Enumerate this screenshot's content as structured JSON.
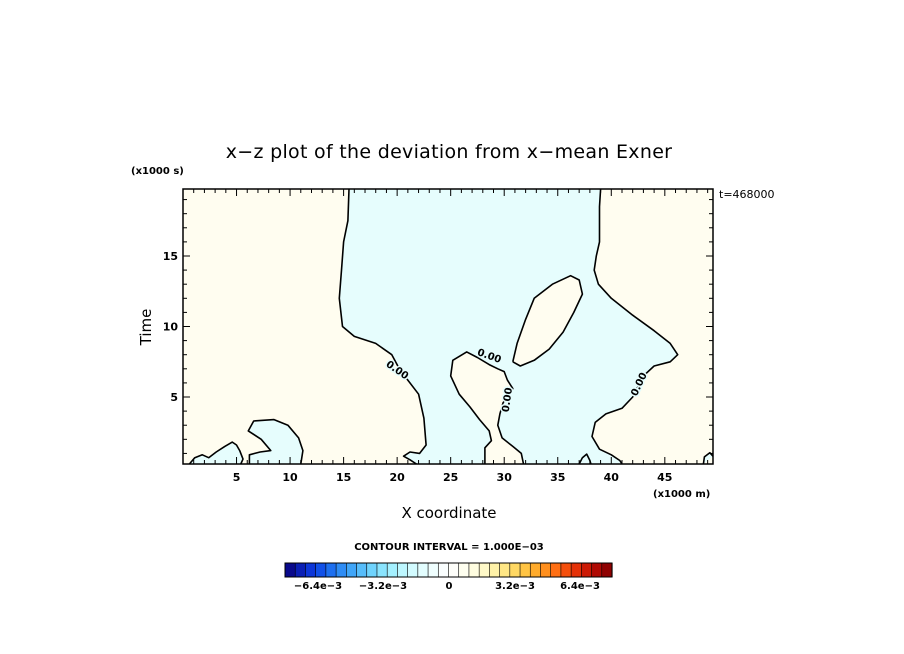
{
  "chart_data": {
    "type": "contour",
    "title": "x−z plot of the deviation from x−mean Exner",
    "xlabel": "X coordinate",
    "ylabel": "Time",
    "x_unit_label": "(x1000 m)",
    "y_unit_label": "(x1000 s)",
    "xlim": [
      0,
      49.5
    ],
    "ylim": [
      0.25,
      19.75
    ],
    "x_ticks": [
      5,
      10,
      15,
      20,
      25,
      30,
      35,
      40,
      45
    ],
    "y_ticks": [
      5,
      10,
      15
    ],
    "annotation": "t=468000",
    "contour_interval_label": "CONTOUR INTERVAL = 1.000E−03",
    "contour_level_label": "0.00",
    "colors": {
      "positive_fill": "#fffdf0",
      "negative_fill": "#e6fdfd",
      "contour": "#000000"
    },
    "zero_contours": [
      {
        "id": "central-region",
        "points": [
          [
            15.5,
            19.75
          ],
          [
            15.4,
            17.5
          ],
          [
            15,
            16
          ],
          [
            14.8,
            14
          ],
          [
            14.6,
            12
          ],
          [
            14.9,
            10
          ],
          [
            16,
            9.3
          ],
          [
            18,
            8.8
          ],
          [
            19.5,
            8
          ],
          [
            20.2,
            7
          ],
          [
            21,
            6.2
          ],
          [
            22,
            5.2
          ],
          [
            22.5,
            3.5
          ],
          [
            22.7,
            1.6
          ],
          [
            22.1,
            1.0
          ],
          [
            21.2,
            1.1
          ],
          [
            20.6,
            0.8
          ],
          [
            21.2,
            0.55
          ],
          [
            21.8,
            0.25
          ]
        ]
      },
      {
        "id": "central-region-right",
        "points": [
          [
            39.0,
            19.75
          ],
          [
            38.9,
            18.5
          ],
          [
            38.9,
            16
          ],
          [
            38.6,
            15
          ],
          [
            38.4,
            14
          ],
          [
            38.8,
            13
          ],
          [
            40,
            12
          ],
          [
            42,
            10.8
          ],
          [
            44,
            9.7
          ],
          [
            45.5,
            8.8
          ],
          [
            46.2,
            8
          ],
          [
            45.5,
            7.5
          ],
          [
            44,
            7.2
          ],
          [
            43,
            6.5
          ],
          [
            42,
            5
          ],
          [
            41,
            4.2
          ],
          [
            39.5,
            3.8
          ],
          [
            38.5,
            3.2
          ],
          [
            38.2,
            2.2
          ],
          [
            38.9,
            1.3
          ],
          [
            40,
            0.9
          ],
          [
            40.8,
            0.5
          ],
          [
            41.0,
            0.25
          ]
        ]
      },
      {
        "id": "inner-lobe",
        "points": [
          [
            28.2,
            0.25
          ],
          [
            28.2,
            1.4
          ],
          [
            28.8,
            1.9
          ],
          [
            28.6,
            2.6
          ],
          [
            27.7,
            3.4
          ],
          [
            26.8,
            4.3
          ],
          [
            25.8,
            5.2
          ],
          [
            25,
            6.5
          ],
          [
            25.2,
            7.6
          ],
          [
            26.5,
            8.2
          ],
          [
            27.5,
            7.8
          ],
          [
            28.6,
            7.3
          ],
          [
            29.4,
            7.0
          ],
          [
            30,
            6.8
          ],
          [
            30.3,
            6.2
          ],
          [
            30.8,
            5.6
          ],
          [
            30.4,
            5.1
          ],
          [
            29.9,
            4.6
          ],
          [
            29.6,
            3.8
          ],
          [
            29.4,
            3.0
          ],
          [
            29.8,
            2.1
          ],
          [
            30.8,
            1.5
          ],
          [
            31.6,
            1.0
          ],
          [
            31.8,
            0.25
          ]
        ]
      },
      {
        "id": "upper-lobe",
        "points": [
          [
            30.8,
            7.5
          ],
          [
            31.2,
            8.8
          ],
          [
            32,
            10.5
          ],
          [
            32.8,
            12
          ],
          [
            34.5,
            13
          ],
          [
            36.2,
            13.6
          ],
          [
            37,
            13.3
          ],
          [
            37.3,
            12.3
          ],
          [
            36.5,
            11
          ],
          [
            35.5,
            9.6
          ],
          [
            34.2,
            8.4
          ],
          [
            32.8,
            7.6
          ],
          [
            31.5,
            7.2
          ],
          [
            30.8,
            7.5
          ]
        ]
      },
      {
        "id": "left-bump",
        "points": [
          [
            6.2,
            0.25
          ],
          [
            6.2,
            0.9
          ],
          [
            7.2,
            1.1
          ],
          [
            8.2,
            1.2
          ],
          [
            7.3,
            2.0
          ],
          [
            6.1,
            2.6
          ],
          [
            6.6,
            3.3
          ],
          [
            8.5,
            3.4
          ],
          [
            9.8,
            3.0
          ],
          [
            10.8,
            2.1
          ],
          [
            11.2,
            1.2
          ],
          [
            11.0,
            0.25
          ]
        ]
      },
      {
        "id": "left-corner",
        "points": [
          [
            0.6,
            0.25
          ],
          [
            1.1,
            0.7
          ],
          [
            1.8,
            0.9
          ],
          [
            2.4,
            0.7
          ],
          [
            3.1,
            1.1
          ],
          [
            3.9,
            1.5
          ],
          [
            4.6,
            1.8
          ],
          [
            5.0,
            1.6
          ],
          [
            5.3,
            1.2
          ],
          [
            5.6,
            0.6
          ],
          [
            5.4,
            0.25
          ]
        ]
      },
      {
        "id": "mid-bottom",
        "points": [
          [
            37.0,
            0.25
          ],
          [
            37.3,
            0.7
          ],
          [
            37.7,
            0.95
          ],
          [
            38.0,
            0.5
          ],
          [
            38.1,
            0.25
          ]
        ]
      },
      {
        "id": "right-corner",
        "points": [
          [
            48.6,
            0.25
          ],
          [
            48.7,
            0.75
          ],
          [
            49.2,
            1.05
          ],
          [
            49.5,
            0.8
          ]
        ]
      }
    ],
    "colorbar": {
      "label_values": [
        "−6.4e−3",
        "−3.2e−3",
        "0",
        "3.2e−3",
        "6.4e−3"
      ],
      "colors": [
        "#0a0a8c",
        "#0b1fb5",
        "#0d36d8",
        "#1150e8",
        "#1d6ff0",
        "#2e8cf5",
        "#40a5f8",
        "#57bdfb",
        "#6fd3fd",
        "#8ae4fe",
        "#a4f0ff",
        "#bdf7ff",
        "#d2fbff",
        "#e3feff",
        "#f0ffff",
        "#fbffff",
        "#fffffb",
        "#fffff0",
        "#fffde0",
        "#fff9c8",
        "#fff2a8",
        "#ffe785",
        "#ffd863",
        "#ffc444",
        "#ffab2c",
        "#ff8f1d",
        "#ff6f13",
        "#f54f0c",
        "#e43108",
        "#cc1a05",
        "#b00a04",
        "#8f0202"
      ]
    }
  }
}
